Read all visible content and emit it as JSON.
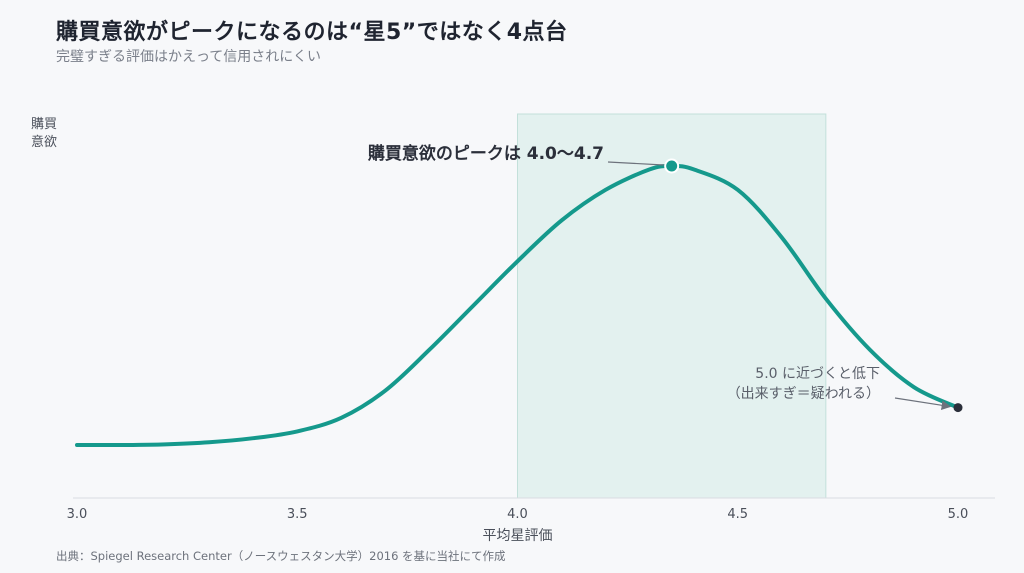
{
  "chart_data": {
    "type": "line",
    "title": "購買意欲がピークになるのは“星5”ではなく4点台",
    "subtitle": "完璧すぎる評価はかえって信用されにくい",
    "xlabel": "平均星評価",
    "ylabel_lines": [
      "購買",
      "意欲"
    ],
    "xlim": [
      3.0,
      5.0
    ],
    "ylim": [
      0,
      1
    ],
    "x_ticks": [
      "3.0",
      "3.5",
      "4.0",
      "4.5",
      "5.0"
    ],
    "x_tick_values": [
      3.0,
      3.5,
      4.0,
      4.5,
      5.0
    ],
    "grid": false,
    "series": [
      {
        "x": [
          3.0,
          3.1,
          3.2,
          3.3,
          3.4,
          3.5,
          3.6,
          3.7,
          3.8,
          3.9,
          4.0,
          4.1,
          4.2,
          4.3,
          4.35,
          4.4,
          4.5,
          4.6,
          4.7,
          4.8,
          4.9,
          5.0
        ],
        "values": [
          0.17,
          0.17,
          0.172,
          0.178,
          0.19,
          0.21,
          0.25,
          0.33,
          0.45,
          0.58,
          0.71,
          0.83,
          0.92,
          0.98,
          0.99,
          0.98,
          0.92,
          0.78,
          0.6,
          0.45,
          0.34,
          0.28
        ],
        "color": "#15998c"
      }
    ],
    "highlight_band": {
      "x_range": [
        4.0,
        4.7
      ],
      "color": "#d3ebe6"
    },
    "annotations": [
      {
        "text": "購買意欲のピークは 4.0〜4.7",
        "point": [
          4.35,
          0.99
        ],
        "color": "#15998c"
      },
      {
        "text_lines": [
          "5.0 に近づくと低下",
          "（出来すぎ＝疑われる）"
        ],
        "point": [
          5.0,
          0.28
        ],
        "color": "#2b2f3a"
      }
    ]
  },
  "source": "出典：Spiegel Research Center（ノースウェスタン大学）2016 を基に当社にて作成"
}
